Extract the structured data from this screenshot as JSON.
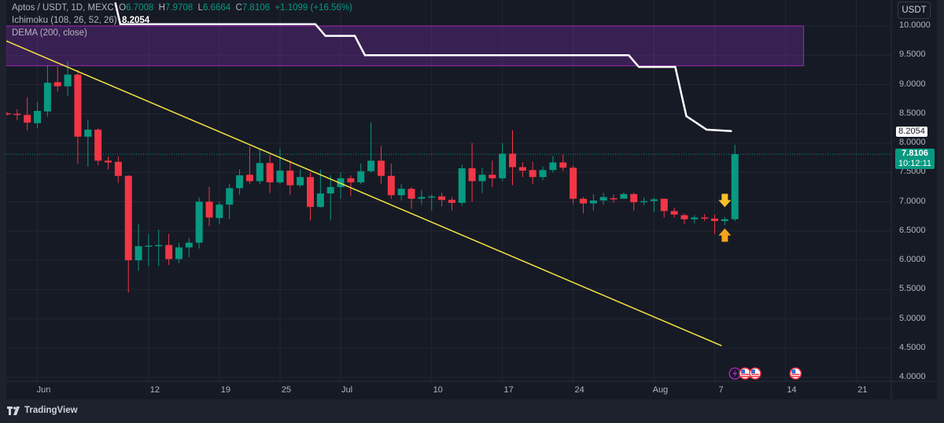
{
  "legend": {
    "symbol": "Aptos / USDT, 1D, MEXC",
    "o_label": "O",
    "o": "6.7008",
    "h_label": "H",
    "h": "7.9708",
    "l_label": "L",
    "l": "6.6664",
    "c_label": "C",
    "c": "7.8106",
    "change": "+1.1099 (+16.56%)",
    "ichimoku": "Ichimoku (108, 26, 52, 26)",
    "ichimoku_value": "8.2054",
    "dema": "DEMA (200, close)"
  },
  "currency_button": "USDT",
  "price_axis": [
    "10.0000",
    "9.5000",
    "9.0000",
    "8.5000",
    "8.0000",
    "7.5000",
    "7.0000",
    "6.5000",
    "6.0000",
    "5.5000",
    "5.0000",
    "4.5000",
    "4.0000"
  ],
  "ichimoku_tag": "8.2054",
  "current_price_tag": {
    "price": "7.8106",
    "countdown": "10:12:11"
  },
  "time_axis": [
    {
      "label": "Jun",
      "idx": 3
    },
    {
      "label": "12",
      "idx": 14
    },
    {
      "label": "19",
      "idx": 21
    },
    {
      "label": "25",
      "idx": 27
    },
    {
      "label": "Jul",
      "idx": 33
    },
    {
      "label": "10",
      "idx": 42
    },
    {
      "label": "17",
      "idx": 49
    },
    {
      "label": "24",
      "idx": 56
    },
    {
      "label": "Aug",
      "idx": 64
    },
    {
      "label": "7",
      "idx": 70
    },
    {
      "label": "14",
      "idx": 77
    },
    {
      "label": "21",
      "idx": 84
    }
  ],
  "branding": "TradingView",
  "colors": {
    "up": "#089981",
    "down": "#f23645",
    "trendline": "#f5e342",
    "ichimoku": "#ffffff",
    "zone": "#7b2fa8",
    "arrow_down": "#f9c02a",
    "arrow_up": "#f7a21b"
  },
  "chart_data": {
    "type": "candlestick",
    "ylim": [
      4.0,
      10.0
    ],
    "ohlc": [
      [
        8.51,
        8.53,
        8.47,
        8.49
      ],
      [
        8.5,
        8.58,
        8.39,
        8.48
      ],
      [
        8.48,
        8.78,
        8.22,
        8.35
      ],
      [
        8.34,
        8.7,
        8.25,
        8.55
      ],
      [
        8.54,
        9.33,
        8.45,
        9.03
      ],
      [
        9.04,
        9.3,
        8.88,
        8.97
      ],
      [
        8.97,
        9.4,
        8.8,
        9.17
      ],
      [
        9.17,
        9.25,
        7.65,
        8.11
      ],
      [
        8.11,
        8.4,
        7.6,
        8.23
      ],
      [
        8.23,
        8.25,
        7.62,
        7.7
      ],
      [
        7.7,
        7.77,
        7.55,
        7.67
      ],
      [
        7.68,
        7.77,
        7.32,
        7.44
      ],
      [
        7.44,
        7.45,
        5.45,
        6.0
      ],
      [
        6.0,
        6.62,
        5.82,
        6.24
      ],
      [
        6.24,
        6.45,
        5.9,
        6.25
      ],
      [
        6.25,
        6.52,
        5.9,
        6.26
      ],
      [
        6.26,
        6.45,
        5.92,
        6.02
      ],
      [
        6.02,
        6.3,
        5.95,
        6.22
      ],
      [
        6.22,
        6.38,
        6.05,
        6.3
      ],
      [
        6.3,
        7.07,
        6.2,
        7.0
      ],
      [
        7.0,
        7.25,
        6.58,
        6.73
      ],
      [
        6.72,
        7.0,
        6.62,
        6.95
      ],
      [
        6.95,
        7.3,
        6.7,
        7.23
      ],
      [
        7.23,
        7.55,
        7.12,
        7.45
      ],
      [
        7.46,
        7.94,
        7.3,
        7.35
      ],
      [
        7.35,
        7.9,
        7.3,
        7.66
      ],
      [
        7.66,
        7.8,
        7.15,
        7.33
      ],
      [
        7.33,
        7.9,
        7.3,
        7.53
      ],
      [
        7.53,
        7.7,
        7.12,
        7.28
      ],
      [
        7.28,
        7.55,
        7.25,
        7.42
      ],
      [
        7.42,
        7.5,
        6.68,
        6.91
      ],
      [
        6.91,
        7.55,
        6.9,
        7.14
      ],
      [
        7.14,
        7.45,
        6.68,
        7.25
      ],
      [
        7.25,
        7.5,
        7.05,
        7.4
      ],
      [
        7.4,
        7.45,
        7.1,
        7.33
      ],
      [
        7.33,
        7.65,
        7.3,
        7.52
      ],
      [
        7.52,
        8.35,
        7.5,
        7.7
      ],
      [
        7.7,
        7.95,
        7.3,
        7.44
      ],
      [
        7.44,
        7.65,
        7.05,
        7.11
      ],
      [
        7.11,
        7.3,
        7.02,
        7.22
      ],
      [
        7.22,
        7.25,
        6.88,
        7.05
      ],
      [
        7.05,
        7.2,
        6.95,
        7.08
      ],
      [
        7.08,
        7.12,
        6.85,
        7.09
      ],
      [
        7.09,
        7.15,
        6.92,
        7.03
      ],
      [
        7.03,
        7.08,
        6.85,
        6.98
      ],
      [
        6.98,
        7.63,
        6.93,
        7.57
      ],
      [
        7.57,
        8.0,
        7.0,
        7.35
      ],
      [
        7.35,
        7.58,
        7.15,
        7.46
      ],
      [
        7.46,
        7.7,
        7.25,
        7.4
      ],
      [
        7.4,
        8.0,
        7.35,
        7.82
      ],
      [
        7.82,
        8.22,
        7.28,
        7.59
      ],
      [
        7.59,
        7.67,
        7.42,
        7.53
      ],
      [
        7.54,
        7.68,
        7.3,
        7.42
      ],
      [
        7.42,
        7.6,
        7.37,
        7.54
      ],
      [
        7.54,
        7.78,
        7.5,
        7.67
      ],
      [
        7.67,
        7.8,
        7.52,
        7.58
      ],
      [
        7.58,
        7.62,
        6.95,
        7.05
      ],
      [
        7.05,
        7.08,
        6.8,
        6.97
      ],
      [
        6.97,
        7.13,
        6.85,
        7.02
      ],
      [
        7.02,
        7.15,
        6.95,
        7.08
      ],
      [
        7.06,
        7.12,
        6.98,
        7.05
      ],
      [
        7.05,
        7.16,
        7.06,
        7.13
      ],
      [
        7.13,
        7.15,
        6.85,
        6.99
      ],
      [
        6.99,
        7.07,
        6.94,
        7.01
      ],
      [
        7.01,
        7.07,
        6.82,
        7.04
      ],
      [
        7.05,
        7.05,
        6.73,
        6.84
      ],
      [
        6.84,
        6.9,
        6.73,
        6.78
      ],
      [
        6.77,
        6.8,
        6.62,
        6.7
      ],
      [
        6.7,
        6.77,
        6.63,
        6.73
      ],
      [
        6.73,
        6.79,
        6.67,
        6.71
      ],
      [
        6.71,
        6.78,
        6.45,
        6.67
      ],
      [
        6.67,
        6.74,
        6.6,
        6.7
      ],
      [
        6.7008,
        7.9708,
        6.6664,
        7.8106
      ]
    ],
    "ichimoku_line": [
      [
        10.7,
        10.4
      ],
      [
        11.2,
        10.03
      ],
      [
        30.5,
        10.03
      ],
      [
        31.5,
        9.83
      ],
      [
        34.4,
        9.83
      ],
      [
        35.4,
        9.5
      ],
      [
        61.5,
        9.5
      ],
      [
        62.5,
        9.3
      ],
      [
        66.1,
        9.3
      ],
      [
        67.2,
        8.46
      ],
      [
        69.2,
        8.23
      ],
      [
        71.7,
        8.2054
      ]
    ],
    "zone": {
      "from_idx": -0.1,
      "to_idx": 78.8,
      "low": 9.32,
      "high": 10.0
    },
    "trendline": [
      [
        -0.1,
        9.745
      ],
      [
        70.7,
        4.54
      ]
    ],
    "signals": [
      {
        "idx": 71,
        "type": "down-arrow",
        "price": 7.0
      },
      {
        "idx": 71,
        "type": "up-arrow",
        "price": 6.45
      }
    ],
    "events": [
      {
        "idx": 72,
        "type": "lightning"
      },
      {
        "idx": 73,
        "type": "us-flag"
      },
      {
        "idx": 74,
        "type": "us-flag"
      },
      {
        "idx": 78,
        "type": "us-flag"
      }
    ]
  }
}
